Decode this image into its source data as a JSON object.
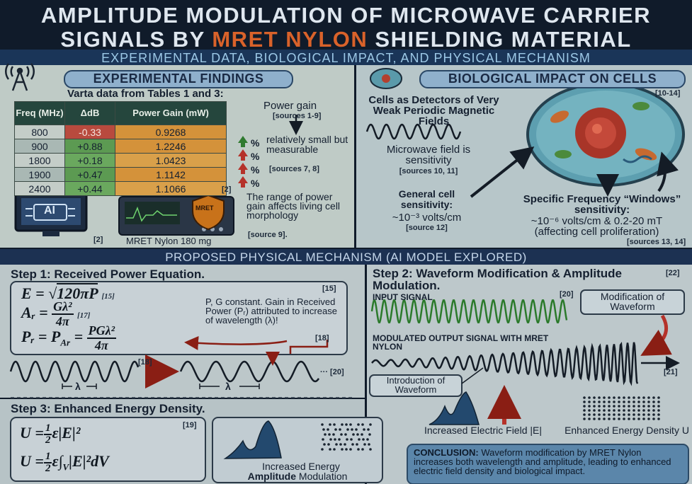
{
  "header": {
    "title_line1": "AMPLITUDE MODULATION OF MICROWAVE CARRIER",
    "title_line2": [
      "SIGNALS BY ",
      "MRET NYLON",
      " SHIELDING MATERIAL"
    ],
    "subtitle": "EXPERIMENTAL DATA, BIOLOGICAL IMPACT, AND PHYSICAL MECHANISM"
  },
  "findings": {
    "title": "EXPERIMENTAL FINDINGS",
    "subtitle": "Varta data from Tables 1 and 3:",
    "table": {
      "headers": [
        "Freq (MHz)",
        "ΔdB",
        "Power Gain (mW)"
      ],
      "rows": [
        [
          "800",
          "-0.33",
          "0.9268"
        ],
        [
          "900",
          "+0.88",
          "1.2246"
        ],
        [
          "1800",
          "+0.18",
          "1.0423"
        ],
        [
          "1900",
          "+0.47",
          "1.1142"
        ],
        [
          "2400",
          "+0.44",
          "1.1066"
        ]
      ]
    },
    "row_marks": [
      "%",
      "%",
      "%",
      "%"
    ],
    "power_gain": "Power gain",
    "power_gain_source": "[sources 1-9]",
    "small_note": "relatively small but measurable",
    "small_source": "[sources 7, 8]",
    "table_ref": "[2]",
    "ai_label": "AI",
    "ai_ref": "[2]",
    "badge": "MRET",
    "device_caption": "MRET Nylon 180 mg",
    "range_note": "The range of power gain affects living cell morphology",
    "range_source": "[source 9]."
  },
  "biology": {
    "title": "BIOLOGICAL IMPACT ON CELLS",
    "ref": "[10-14]",
    "detectors": "Cells as Detectors of Very Weak Periodic Magnetic Fields",
    "microwave": "Microwave field is sensitivity",
    "microwave_source": "[sources 10, 11]",
    "general": "General cell sensitivity:",
    "general_value": "~10⁻³ volts/cm",
    "general_source": "[source 12]",
    "specific": "Specific Frequency “Windows” sensitivity:",
    "specific_value": "~10⁻⁶ volts/cm & 0.2-20 mT",
    "specific_effect": "(affecting cell proliferation)",
    "specific_source": "[sources 13, 14]"
  },
  "mechanism": {
    "title": "PROPOSED PHYSICAL MECHANISM (AI MODEL EXPLORED)",
    "step1": {
      "title": "Step 1: Received Power Equation.",
      "box_ref": "[15]",
      "eq1": {
        "lhs": "E =",
        "radical": "√",
        "root": "120πP",
        "ref": "[15]"
      },
      "eq2": {
        "lhs": "Aᵣ =",
        "num": "Gλ²",
        "den": "4π",
        "ref": "[17]"
      },
      "eq3": {
        "lhs": "Pᵣ = P",
        "sub": "Ar",
        "eq": " =",
        "num": "PGλ²",
        "den": "4π"
      },
      "note": "P, G constant. Gain in Received Power (Pᵣ) attributed to increase of wavelength (λ)!",
      "note_ref": "[18]",
      "wave_ref": "[18]",
      "wave_end": "··· [20]",
      "lambda": [
        "λ",
        "λ"
      ]
    },
    "step2": {
      "title": "Step 2: Waveform Modification & Amplitude Modulation.",
      "ref": "[22]",
      "input": "INPUT SIGNAL",
      "input_ref": "[20]",
      "modification": "Modification of Waveform",
      "modulated": "MODULATED OUTPUT SIGNAL WITH MRET NYLON",
      "output_ref": "[21]",
      "introduction": "Introduction of Waveform",
      "field": "Increased Electric Field |E|",
      "density": "Enhanced Energy Density U"
    },
    "step3": {
      "title": "Step 3: Enhanced Energy Density.",
      "ref": "[19]",
      "eq1": {
        "lhs": "U =",
        "num": "1",
        "den": "2",
        "rhs": "ε|E|²"
      },
      "eq2": {
        "lhs": "U =",
        "num": "1",
        "den": "2",
        "rhs": "ε∫",
        "sub": "V",
        "rhs2": "|E|²dV"
      },
      "caption": "Increased Energy",
      "caption_bold": "Amplitude",
      "caption_rest": " Modulation"
    },
    "conclusion": {
      "label": "CONCLUSION:",
      "text": " Waveform modification by MRET Nylon increases both wavelength and amplitude, leading to enhanced electric field density and biological impact."
    }
  }
}
